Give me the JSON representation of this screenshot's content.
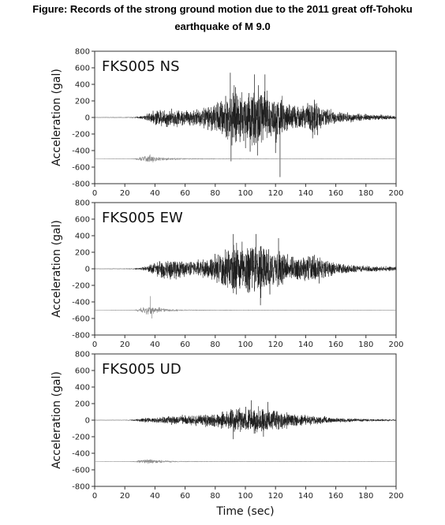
{
  "title": {
    "line1": "Figure: Records of the strong ground motion due to the 2011 great off-Tohoku",
    "line2": "earthquake of M 9.0"
  },
  "colors": {
    "trace": "#1a1a1a",
    "ref_trace": "#8a8a8a",
    "axis": "#333333"
  },
  "chart_data": [
    {
      "type": "line",
      "title": "FKS005 NS",
      "xlabel": "",
      "ylabel": "Acceleration (gal)",
      "xlim": [
        0,
        200
      ],
      "ylim": [
        -800,
        800
      ],
      "x_ticks": [
        0,
        20,
        40,
        60,
        80,
        100,
        120,
        140,
        160,
        180,
        200
      ],
      "y_ticks": [
        800,
        600,
        400,
        200,
        0,
        -200,
        -400,
        -600,
        -800
      ],
      "y_tick_labels": [
        "800",
        "600",
        "400",
        "200",
        "0",
        "-200",
        "-400",
        "-600",
        "-800"
      ],
      "grid": false,
      "series": [
        {
          "role": "main",
          "offset": 0,
          "envelope": [
            [
              0,
              2
            ],
            [
              20,
              3
            ],
            [
              26,
              6
            ],
            [
              32,
              25
            ],
            [
              38,
              80
            ],
            [
              46,
              140
            ],
            [
              56,
              120
            ],
            [
              66,
              115
            ],
            [
              76,
              170
            ],
            [
              86,
              300
            ],
            [
              92,
              420
            ],
            [
              100,
              380
            ],
            [
              106,
              500
            ],
            [
              112,
              420
            ],
            [
              118,
              330
            ],
            [
              124,
              290
            ],
            [
              130,
              190
            ],
            [
              140,
              180
            ],
            [
              146,
              300
            ],
            [
              150,
              170
            ],
            [
              160,
              90
            ],
            [
              172,
              60
            ],
            [
              186,
              45
            ],
            [
              200,
              30
            ]
          ],
          "spikes": [
            [
              90,
              540
            ],
            [
              90.5,
              -530
            ],
            [
              106,
              520
            ],
            [
              108,
              -460
            ],
            [
              113,
              520
            ],
            [
              120,
              -430
            ],
            [
              123,
              -720
            ],
            [
              123.5,
              180
            ]
          ]
        },
        {
          "role": "reference",
          "offset": -500,
          "envelope": [
            [
              0,
              0
            ],
            [
              22,
              1
            ],
            [
              26,
              5
            ],
            [
              32,
              40
            ],
            [
              36,
              70
            ],
            [
              40,
              35
            ],
            [
              48,
              18
            ],
            [
              60,
              8
            ],
            [
              80,
              4
            ],
            [
              120,
              2
            ],
            [
              200,
              1
            ]
          ],
          "spikes": []
        }
      ]
    },
    {
      "type": "line",
      "title": "FKS005 EW",
      "xlabel": "",
      "ylabel": "Acceleration (gal)",
      "xlim": [
        0,
        200
      ],
      "ylim": [
        -800,
        800
      ],
      "x_ticks": [
        0,
        20,
        40,
        60,
        80,
        100,
        120,
        140,
        160,
        180,
        200
      ],
      "y_ticks": [
        800,
        600,
        400,
        200,
        0,
        -200,
        -400,
        -600,
        -800
      ],
      "y_tick_labels": [
        "800",
        "600",
        "400",
        "200",
        "0",
        "-200",
        "-400",
        "-600",
        "-800"
      ],
      "grid": false,
      "series": [
        {
          "role": "main",
          "offset": 0,
          "envelope": [
            [
              0,
              2
            ],
            [
              20,
              3
            ],
            [
              26,
              6
            ],
            [
              32,
              25
            ],
            [
              38,
              75
            ],
            [
              46,
              150
            ],
            [
              56,
              130
            ],
            [
              66,
              110
            ],
            [
              76,
              150
            ],
            [
              86,
              260
            ],
            [
              92,
              350
            ],
            [
              100,
              330
            ],
            [
              106,
              400
            ],
            [
              112,
              360
            ],
            [
              118,
              300
            ],
            [
              124,
              260
            ],
            [
              130,
              180
            ],
            [
              140,
              170
            ],
            [
              146,
              250
            ],
            [
              150,
              160
            ],
            [
              160,
              90
            ],
            [
              172,
              55
            ],
            [
              186,
              40
            ],
            [
              200,
              30
            ]
          ],
          "spikes": [
            [
              92,
              420
            ],
            [
              107,
              420
            ],
            [
              110,
              -440
            ],
            [
              122,
              370
            ],
            [
              94,
              -310
            ]
          ]
        },
        {
          "role": "reference",
          "offset": -500,
          "envelope": [
            [
              0,
              0
            ],
            [
              22,
              1
            ],
            [
              26,
              5
            ],
            [
              32,
              40
            ],
            [
              36,
              85
            ],
            [
              40,
              45
            ],
            [
              48,
              20
            ],
            [
              60,
              8
            ],
            [
              80,
              4
            ],
            [
              120,
              2
            ],
            [
              200,
              1
            ]
          ],
          "spikes": [
            [
              38,
              -100
            ],
            [
              37,
              170
            ]
          ]
        }
      ]
    },
    {
      "type": "line",
      "title": "FKS005 UD",
      "xlabel": "Time (sec)",
      "ylabel": "Acceleration (gal)",
      "xlim": [
        0,
        200
      ],
      "ylim": [
        -800,
        800
      ],
      "x_ticks": [
        0,
        20,
        40,
        60,
        80,
        100,
        120,
        140,
        160,
        180,
        200
      ],
      "y_ticks": [
        800,
        600,
        400,
        200,
        0,
        -200,
        -400,
        -600,
        -800
      ],
      "y_tick_labels": [
        "800",
        "600",
        "400",
        "200",
        "0",
        "-200",
        "-400",
        "-600",
        "-800"
      ],
      "grid": false,
      "series": [
        {
          "role": "main",
          "offset": 0,
          "envelope": [
            [
              0,
              1
            ],
            [
              20,
              2
            ],
            [
              24,
              6
            ],
            [
              32,
              30
            ],
            [
              40,
              45
            ],
            [
              50,
              60
            ],
            [
              60,
              70
            ],
            [
              70,
              80
            ],
            [
              80,
              110
            ],
            [
              90,
              150
            ],
            [
              100,
              175
            ],
            [
              108,
              200
            ],
            [
              116,
              160
            ],
            [
              124,
              130
            ],
            [
              132,
              90
            ],
            [
              140,
              70
            ],
            [
              150,
              55
            ],
            [
              160,
              35
            ],
            [
              170,
              25
            ],
            [
              185,
              18
            ],
            [
              200,
              12
            ]
          ],
          "spikes": [
            [
              92,
              -230
            ],
            [
              104,
              240
            ],
            [
              115,
              220
            ],
            [
              112,
              -200
            ]
          ]
        },
        {
          "role": "reference",
          "offset": -500,
          "envelope": [
            [
              0,
              0
            ],
            [
              22,
              1
            ],
            [
              26,
              6
            ],
            [
              32,
              30
            ],
            [
              36,
              40
            ],
            [
              40,
              25
            ],
            [
              50,
              12
            ],
            [
              60,
              5
            ],
            [
              80,
              3
            ],
            [
              120,
              2
            ],
            [
              200,
              1
            ]
          ],
          "spikes": []
        }
      ]
    }
  ]
}
